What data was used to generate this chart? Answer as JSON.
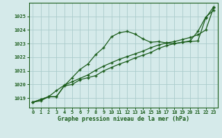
{
  "title": "Graphe pression niveau de la mer (hPa)",
  "bg_color": "#d5eaea",
  "grid_color": "#aacccc",
  "line_color": "#1a5c1a",
  "x_labels": [
    "0",
    "1",
    "2",
    "3",
    "4",
    "5",
    "6",
    "7",
    "8",
    "9",
    "10",
    "11",
    "12",
    "13",
    "14",
    "15",
    "16",
    "17",
    "18",
    "19",
    "20",
    "21",
    "22",
    "23"
  ],
  "ylim": [
    1018.3,
    1026.0
  ],
  "yticks": [
    1019,
    1020,
    1021,
    1022,
    1023,
    1024,
    1025
  ],
  "series_a": [
    1018.7,
    1018.9,
    1019.1,
    1019.1,
    1019.9,
    1020.5,
    1021.1,
    1021.5,
    1022.2,
    1022.7,
    1023.5,
    1023.8,
    1023.9,
    1023.7,
    1023.35,
    1023.1,
    1023.15,
    1023.05,
    1023.0,
    1023.1,
    1023.15,
    1023.2,
    1024.9,
    1025.7
  ],
  "series_b": [
    1018.7,
    1018.8,
    1019.1,
    1019.1,
    1019.9,
    1020.0,
    1020.35,
    1020.5,
    1020.65,
    1021.0,
    1021.25,
    1021.5,
    1021.7,
    1021.95,
    1022.15,
    1022.35,
    1022.65,
    1022.85,
    1023.0,
    1023.1,
    1023.2,
    1023.9,
    1024.95,
    1025.45
  ],
  "series_c": [
    1018.7,
    1018.9,
    1019.1,
    1019.55,
    1019.95,
    1020.2,
    1020.45,
    1020.7,
    1021.05,
    1021.35,
    1021.6,
    1021.85,
    1022.05,
    1022.25,
    1022.45,
    1022.7,
    1022.9,
    1023.05,
    1023.15,
    1023.3,
    1023.45,
    1023.65,
    1024.0,
    1025.65
  ]
}
